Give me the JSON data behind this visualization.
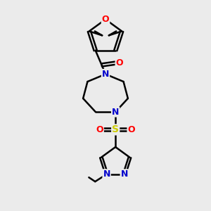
{
  "bg_color": "#ebebeb",
  "atom_colors": {
    "C": "#000000",
    "N": "#0000cc",
    "O": "#ff0000",
    "S": "#cccc00"
  },
  "bond_color": "#000000",
  "bond_width": 1.8,
  "figsize": [
    3.0,
    3.0
  ],
  "dpi": 100
}
